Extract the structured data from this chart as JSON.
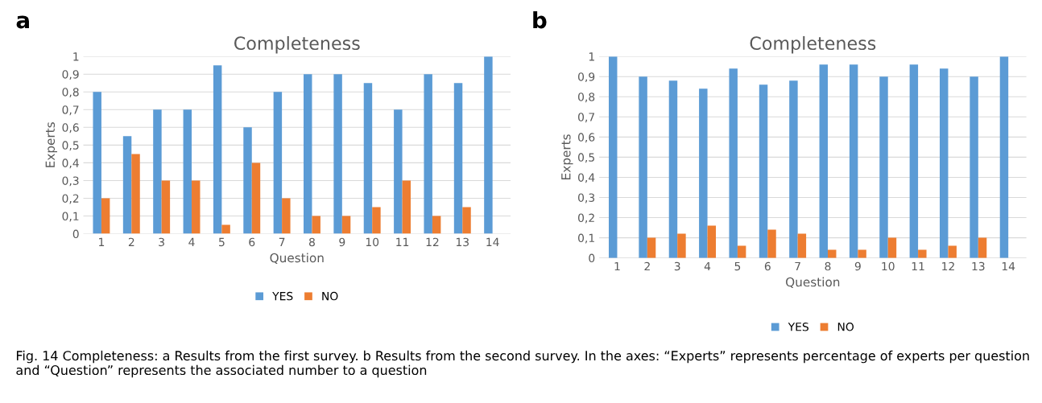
{
  "chart_data": [
    {
      "type": "bar",
      "title": "Completeness",
      "xlabel": "Question",
      "ylabel": "Experts",
      "categories": [
        "1",
        "2",
        "3",
        "4",
        "5",
        "6",
        "7",
        "8",
        "9",
        "10",
        "11",
        "12",
        "13",
        "14"
      ],
      "series": [
        {
          "name": "YES",
          "color": "#5b9bd5",
          "values": [
            0.8,
            0.55,
            0.7,
            0.7,
            0.95,
            0.6,
            0.8,
            0.9,
            0.9,
            0.85,
            0.7,
            0.9,
            0.85,
            1
          ]
        },
        {
          "name": "NO",
          "color": "#ed7d31",
          "values": [
            0.2,
            0.45,
            0.3,
            0.3,
            0.05,
            0.4,
            0.2,
            0.1,
            0.1,
            0.15,
            0.3,
            0.1,
            0.15,
            0
          ]
        }
      ],
      "ylim": [
        0,
        1
      ],
      "yticks": [
        0,
        {
          "value": 0.1,
          "label": "0,1"
        },
        {
          "value": 0.2,
          "label": "0,2"
        },
        {
          "value": 0.3,
          "label": "0,3"
        },
        {
          "value": 0.4,
          "label": "0,4"
        },
        {
          "value": 0.5,
          "label": "0,5"
        },
        {
          "value": 0.6,
          "label": "0,6"
        },
        {
          "value": 0.7,
          "label": "0,7"
        },
        {
          "value": 0.8,
          "label": "0,8"
        },
        {
          "value": 0.9,
          "label": "0,9"
        },
        1
      ],
      "grid": "y",
      "legend": "bottom",
      "annotations": [
        "a"
      ]
    },
    {
      "type": "bar",
      "title": "Completeness",
      "xlabel": "Question",
      "ylabel": "Experts",
      "categories": [
        "1",
        "2",
        "3",
        "4",
        "5",
        "6",
        "7",
        "8",
        "9",
        "10",
        "11",
        "12",
        "13",
        "14"
      ],
      "series": [
        {
          "name": "YES",
          "color": "#5b9bd5",
          "values": [
            1,
            0.9,
            0.88,
            0.84,
            0.94,
            0.86,
            0.88,
            0.96,
            0.96,
            0.9,
            0.96,
            0.94,
            0.9,
            1
          ]
        },
        {
          "name": "NO",
          "color": "#ed7d31",
          "values": [
            0,
            0.1,
            0.12,
            0.16,
            0.06,
            0.14,
            0.12,
            0.04,
            0.04,
            0.1,
            0.04,
            0.06,
            0.1,
            0
          ]
        }
      ],
      "ylim": [
        0,
        1
      ],
      "yticks": [
        0,
        {
          "value": 0.1,
          "label": "0,1"
        },
        {
          "value": 0.2,
          "label": "0,2"
        },
        {
          "value": 0.3,
          "label": "0,3"
        },
        {
          "value": 0.4,
          "label": "0,4"
        },
        {
          "value": 0.5,
          "label": "0,5"
        },
        {
          "value": 0.6,
          "label": "0,6"
        },
        {
          "value": 0.7,
          "label": "0,7"
        },
        {
          "value": 0.8,
          "label": "0,8"
        },
        {
          "value": 0.9,
          "label": "0,9"
        },
        1
      ],
      "grid": "y",
      "legend": "bottom",
      "annotations": [
        "b",
        "Fig. 14 Completeness: a Results from the first survey. b Results from the second survey. In the axes: “Experts” represents percentage of experts per question and “Question” represents the associated number to a question"
      ]
    }
  ]
}
